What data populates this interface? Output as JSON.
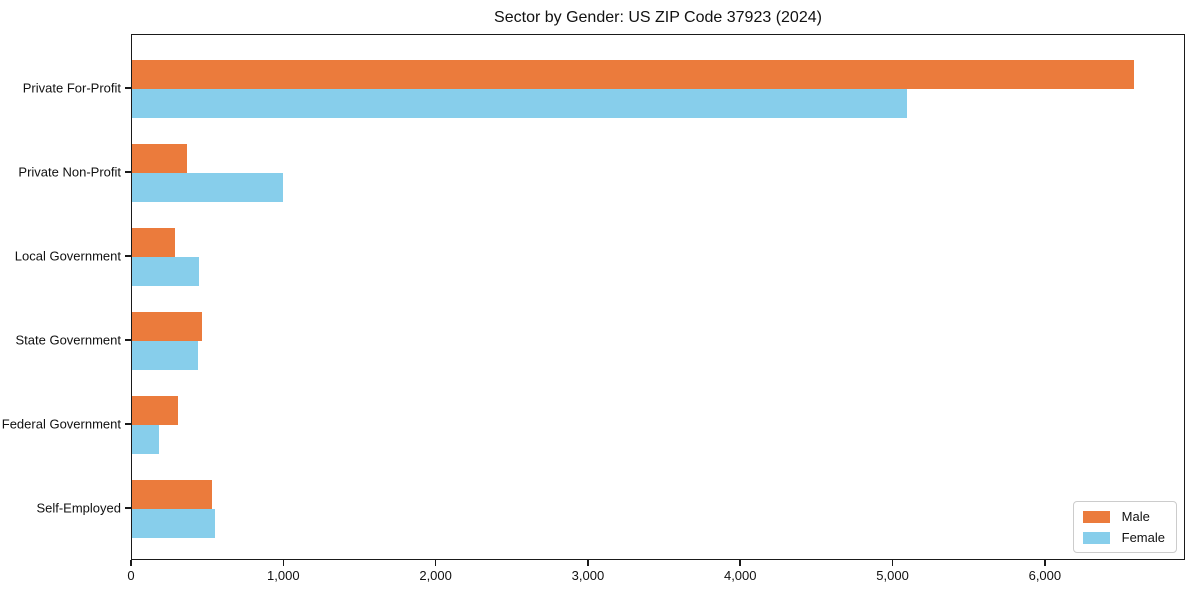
{
  "figure": {
    "title": "Sector by Gender: US ZIP Code 37923 (2024)"
  },
  "chart_data": {
    "type": "bar",
    "orientation": "horizontal",
    "title": "Sector by Gender: US ZIP Code 37923 (2024)",
    "categories": [
      "Private For-Profit",
      "Private Non-Profit",
      "Local Government",
      "State Government",
      "Federal Government",
      "Self-Employed"
    ],
    "series": [
      {
        "name": "Male",
        "color": "#EB7B3C",
        "values": [
          6590,
          360,
          285,
          460,
          305,
          525
        ]
      },
      {
        "name": "Female",
        "color": "#87CEEB",
        "values": [
          5100,
          990,
          440,
          437,
          180,
          548
        ]
      }
    ],
    "xlabel": "",
    "ylabel": "",
    "xlim": [
      0,
      6920
    ],
    "x_ticks": [
      0,
      1000,
      2000,
      3000,
      4000,
      5000,
      6000
    ],
    "x_tick_labels": [
      "0",
      "1,000",
      "2,000",
      "3,000",
      "4,000",
      "5,000",
      "6,000"
    ],
    "grid": false,
    "legend_position": "lower right",
    "colors": {
      "male": "#EB7B3C",
      "female": "#87CEEB",
      "axis": "#1a1a1a",
      "legend_border": "#cccccc"
    }
  }
}
